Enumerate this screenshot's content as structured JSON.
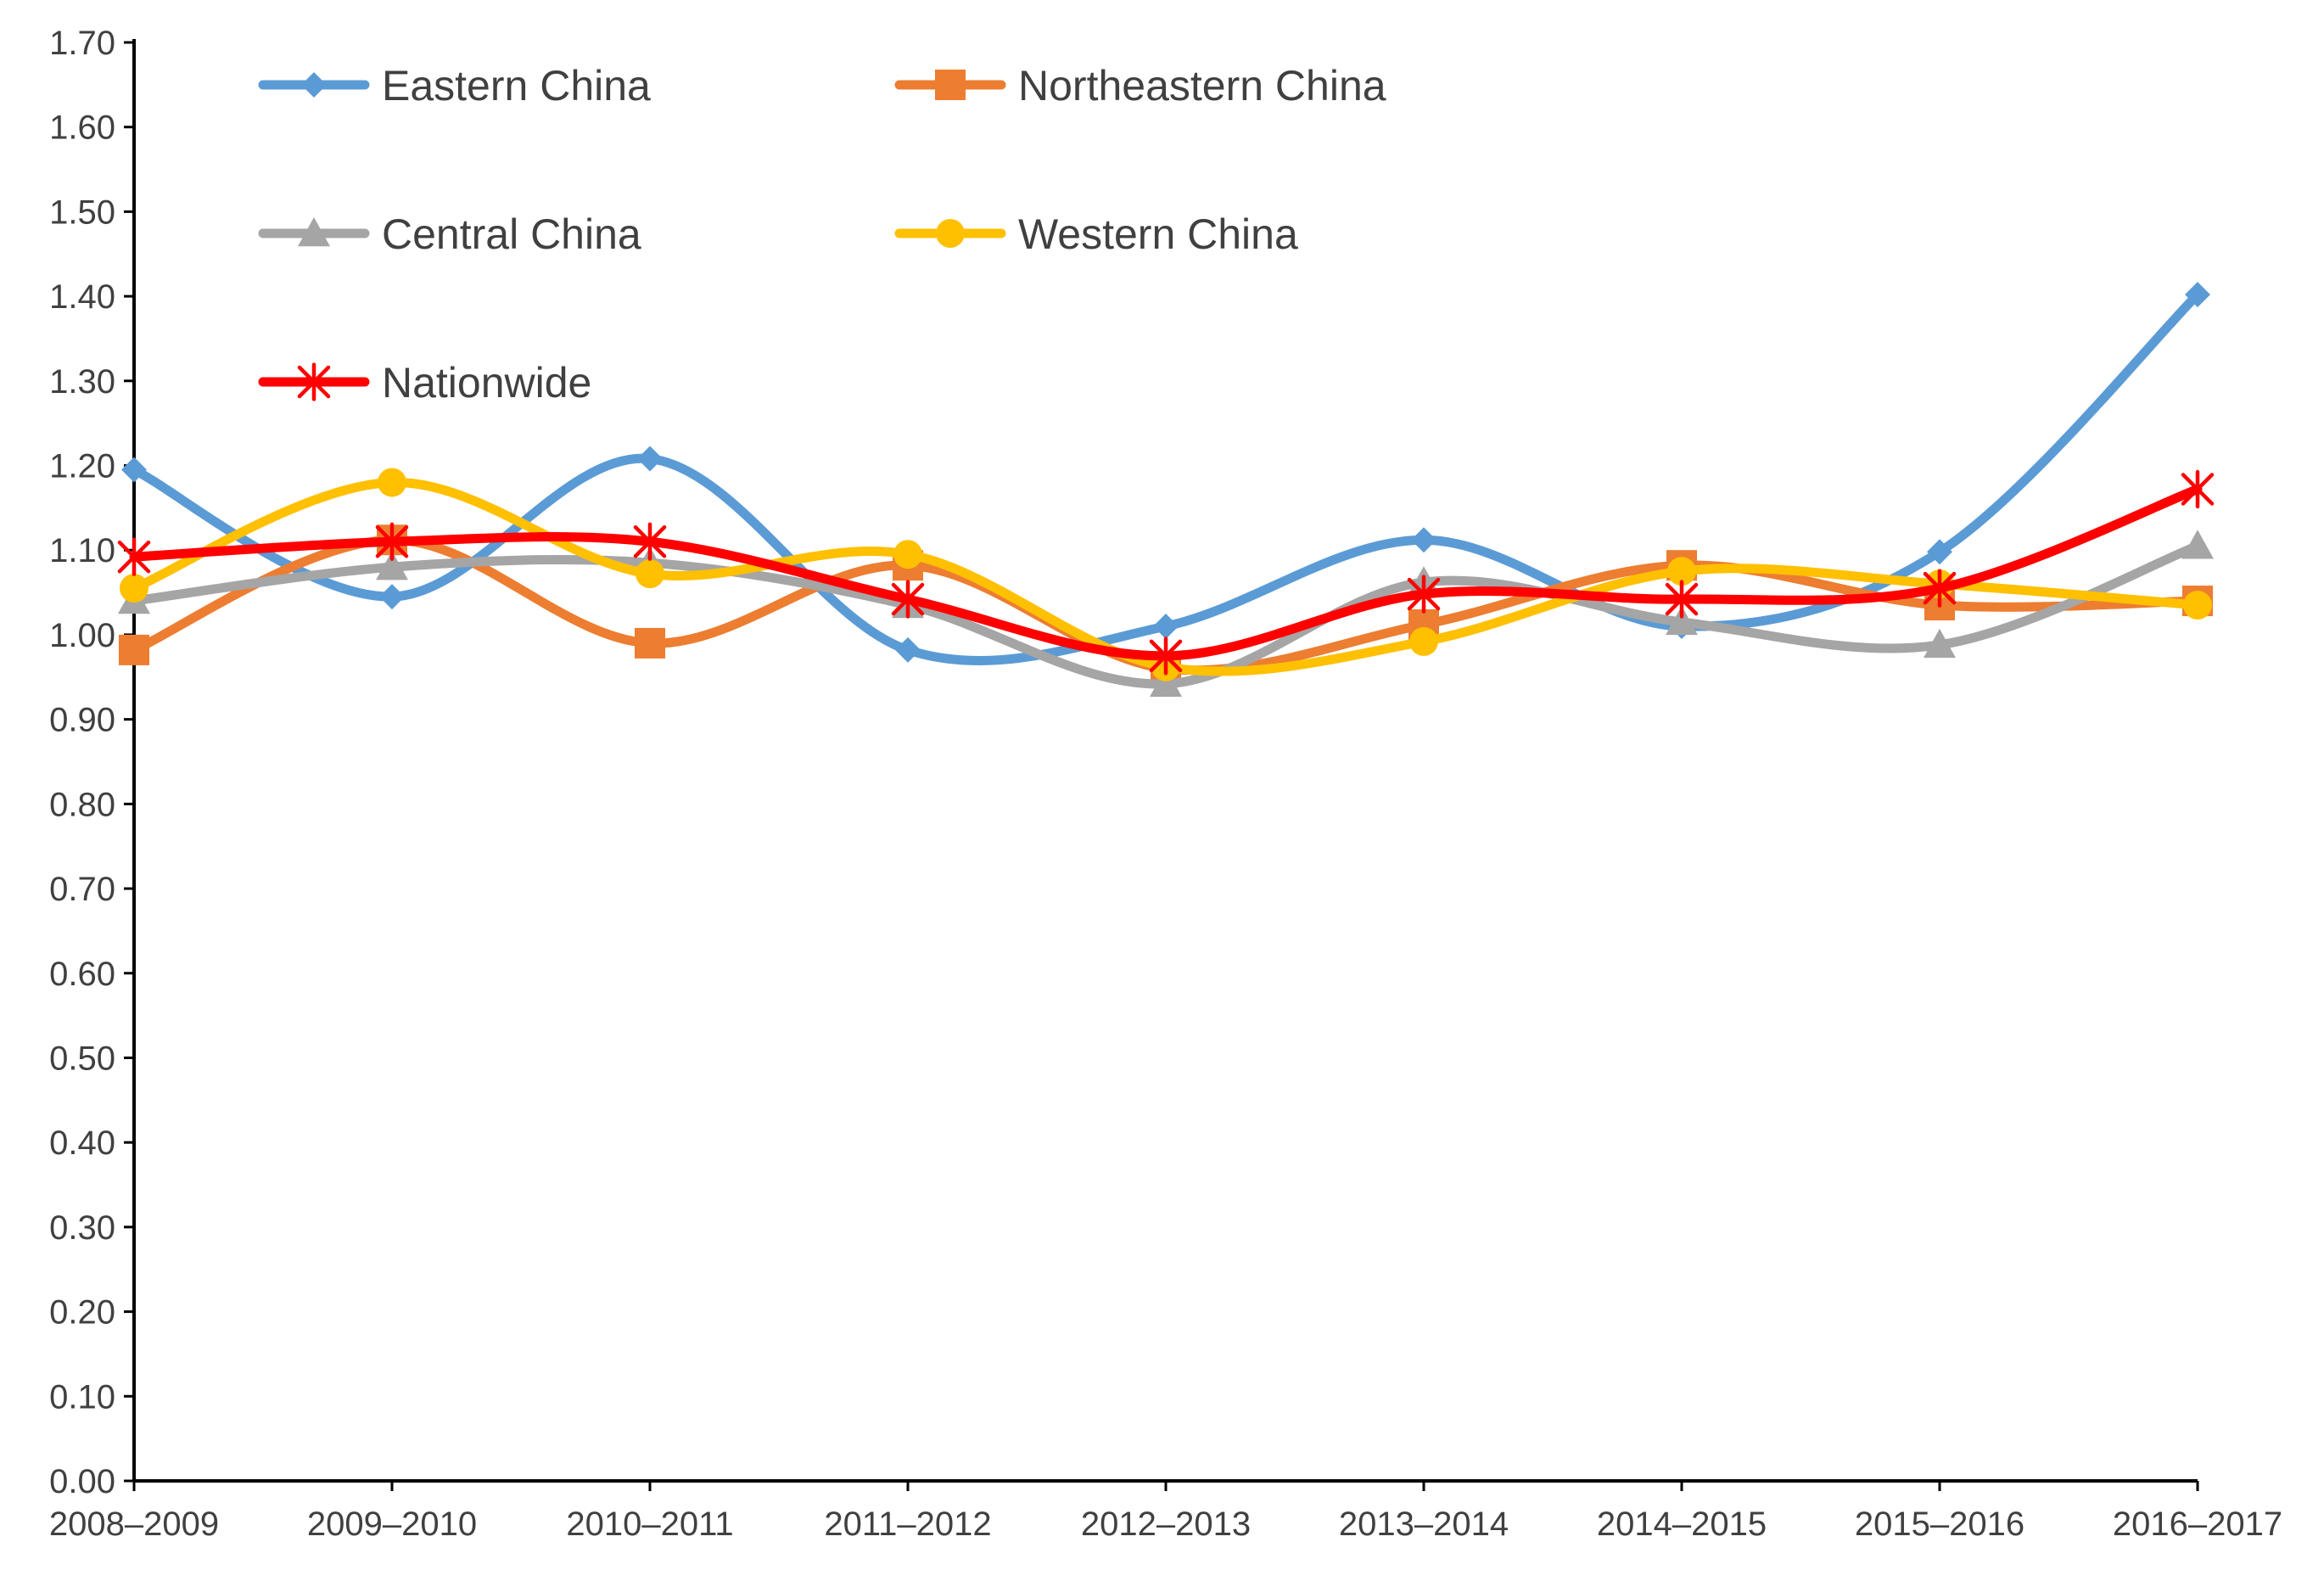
{
  "chart_data": {
    "type": "line",
    "title": "",
    "xlabel": "",
    "ylabel": "",
    "grid": false,
    "legend_position": "top-left",
    "ylim": [
      0,
      1.7
    ],
    "y_ticks": [
      "0.00",
      "0.10",
      "0.20",
      "0.30",
      "0.40",
      "0.50",
      "0.60",
      "0.70",
      "0.80",
      "0.90",
      "1.00",
      "1.10",
      "1.20",
      "1.30",
      "1.40",
      "1.50",
      "1.60",
      "1.70"
    ],
    "categories": [
      "2008–2009",
      "2009–2010",
      "2010–2011",
      "2011–2012",
      "2012–2013",
      "2013–2014",
      "2014–2015",
      "2015–2016",
      "2016–2017"
    ],
    "series": [
      {
        "name": "Eastern China",
        "color": "#5b9bd5",
        "marker": "diamond",
        "values": [
          1.195,
          1.045,
          1.208,
          0.982,
          1.01,
          1.112,
          1.01,
          1.098,
          1.402
        ]
      },
      {
        "name": "Northeastern China",
        "color": "#ed7d31",
        "marker": "square",
        "values": [
          0.982,
          1.112,
          0.99,
          1.082,
          0.96,
          1.012,
          1.082,
          1.035,
          1.04
        ]
      },
      {
        "name": "Central China",
        "color": "#a5a5a5",
        "marker": "triangle",
        "values": [
          1.04,
          1.08,
          1.085,
          1.035,
          0.942,
          1.062,
          1.015,
          0.988,
          1.105
        ]
      },
      {
        "name": "Western China",
        "color": "#ffc000",
        "marker": "circle",
        "values": [
          1.055,
          1.18,
          1.072,
          1.095,
          0.962,
          0.992,
          1.075,
          1.06,
          1.035
        ]
      },
      {
        "name": "Nationwide",
        "color": "#ff0000",
        "marker": "asterisk",
        "values": [
          1.092,
          1.11,
          1.11,
          1.042,
          0.975,
          1.048,
          1.042,
          1.055,
          1.172
        ]
      }
    ]
  }
}
